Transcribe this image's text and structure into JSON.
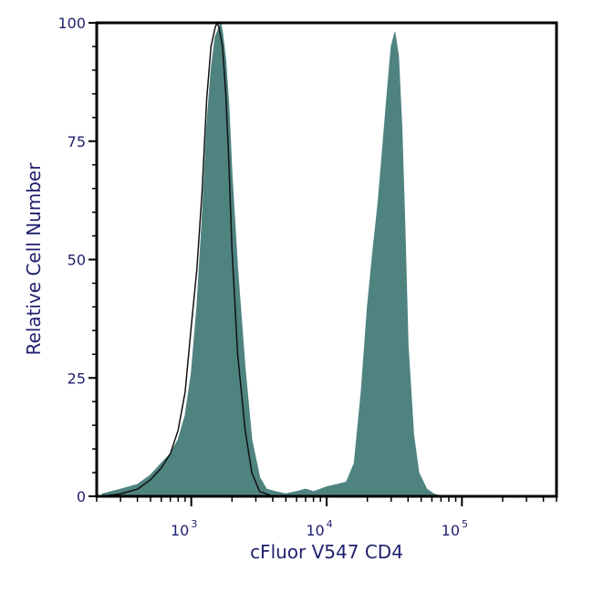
{
  "chart_data": {
    "type": "area",
    "xlabel": "cFluor V547 CD4",
    "ylabel": "Relative Cell Number",
    "x_scale": "log",
    "xlim": [
      200,
      500000
    ],
    "ylim": [
      0,
      100
    ],
    "y_ticks": [
      0,
      25,
      50,
      75,
      100
    ],
    "x_ticks": [
      {
        "value": 1000,
        "base": "10",
        "exp": "3"
      },
      {
        "value": 10000,
        "base": "10",
        "exp": "4"
      },
      {
        "value": 100000,
        "base": "10",
        "exp": "5"
      }
    ],
    "grid": false,
    "legend": "none",
    "series": [
      {
        "style": "filled",
        "color": "#4e8380",
        "x": [
          220,
          300,
          400,
          500,
          600,
          700,
          800,
          900,
          1000,
          1100,
          1200,
          1300,
          1400,
          1500,
          1600,
          1650,
          1700,
          1800,
          1900,
          2000,
          2200,
          2500,
          2800,
          3200,
          3600,
          4200,
          5000,
          6000,
          7000,
          8000,
          9000,
          10000,
          12000,
          14000,
          16000,
          18000,
          20000,
          22000,
          24000,
          26000,
          28000,
          30000,
          32000,
          34000,
          36000,
          38000,
          40000,
          44000,
          48000,
          55000,
          62000,
          70000
        ],
        "y": [
          0.5,
          1.5,
          2.5,
          4.5,
          7,
          9,
          12,
          17,
          26,
          40,
          58,
          78,
          90,
          97,
          99,
          100,
          98,
          92,
          82,
          68,
          48,
          27,
          12,
          4,
          1.5,
          1,
          0.5,
          1,
          1.5,
          1,
          1.5,
          2,
          2.5,
          3,
          7,
          22,
          40,
          52,
          62,
          74,
          85,
          95,
          98,
          93,
          78,
          56,
          32,
          13,
          5,
          1.5,
          0.5,
          0
        ]
      },
      {
        "style": "outline",
        "color": "#111111",
        "x": [
          220,
          300,
          400,
          500,
          600,
          700,
          800,
          900,
          1000,
          1100,
          1200,
          1300,
          1400,
          1500,
          1550,
          1600,
          1700,
          1800,
          1900,
          2000,
          2200,
          2500,
          2800,
          3200,
          3600,
          4000
        ],
        "y": [
          0,
          0.5,
          1.5,
          3.5,
          6,
          9,
          14,
          22,
          36,
          48,
          64,
          84,
          95,
          99,
          100,
          99,
          95,
          85,
          70,
          52,
          30,
          14,
          5,
          1,
          0.5,
          0
        ]
      }
    ]
  }
}
